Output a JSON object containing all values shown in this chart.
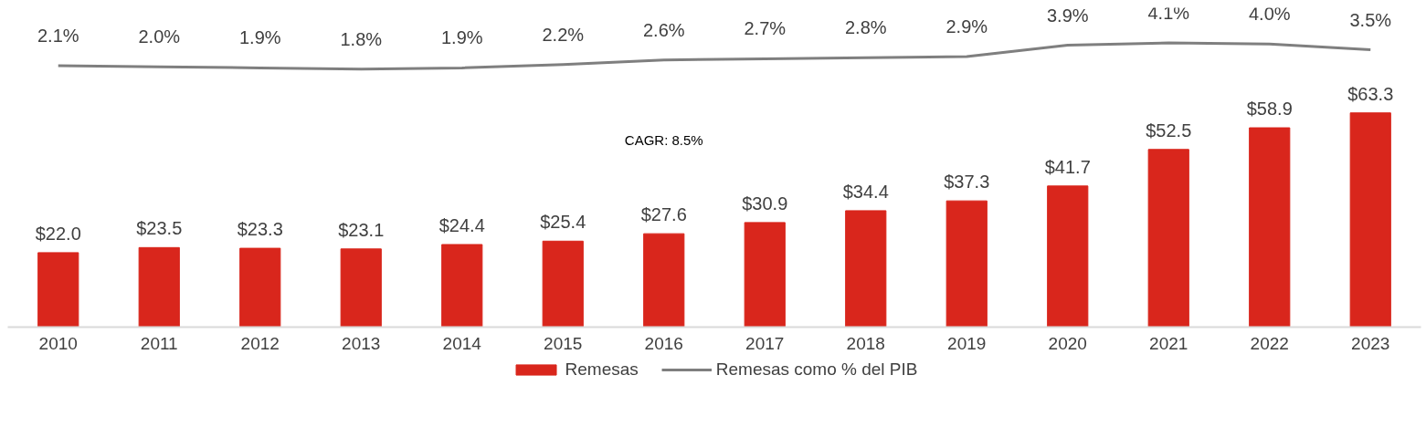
{
  "chart_data": [
    {
      "type": "line",
      "categories": [
        "2010",
        "2011",
        "2012",
        "2013",
        "2014",
        "2015",
        "2016",
        "2017",
        "2018",
        "2019",
        "2020",
        "2021",
        "2022",
        "2023"
      ],
      "series": [
        {
          "name": "Remesas como % del PIB",
          "color": "#7f7f7f",
          "values": [
            2.1,
            2.0,
            1.9,
            1.8,
            1.9,
            2.2,
            2.6,
            2.7,
            2.8,
            2.9,
            3.9,
            4.1,
            4.0,
            3.5
          ],
          "value_labels": [
            "2.1%",
            "2.0%",
            "1.9%",
            "1.8%",
            "1.9%",
            "2.2%",
            "2.6%",
            "2.7%",
            "2.8%",
            "2.9%",
            "3.9%",
            "4.1%",
            "4.0%",
            "3.5%"
          ]
        }
      ],
      "tick_labels": false,
      "grid": false
    },
    {
      "type": "bar",
      "categories": [
        "2010",
        "2011",
        "2012",
        "2013",
        "2014",
        "2015",
        "2016",
        "2017",
        "2018",
        "2019",
        "2020",
        "2021",
        "2022",
        "2023"
      ],
      "series": [
        {
          "name": "Remesas",
          "color": "#d9261c",
          "values": [
            22.0,
            23.5,
            23.3,
            23.1,
            24.4,
            25.4,
            27.6,
            30.9,
            34.4,
            37.3,
            41.7,
            52.5,
            58.9,
            63.3
          ],
          "value_labels": [
            "$22.0",
            "$23.5",
            "$23.3",
            "$23.1",
            "$24.4",
            "$25.4",
            "$27.6",
            "$30.9",
            "$34.4",
            "$37.3",
            "$41.7",
            "$52.5",
            "$58.9",
            "$63.3"
          ]
        }
      ],
      "tick_labels": "x",
      "grid": false,
      "legend": "bottom",
      "annotations": [
        "CAGR: 8.5%"
      ]
    }
  ]
}
